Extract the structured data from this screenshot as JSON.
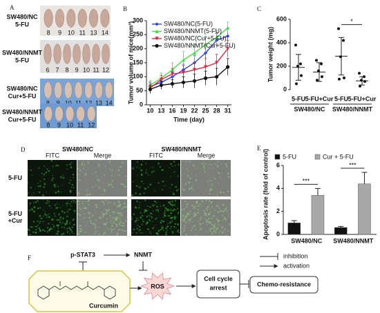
{
  "panel_labels": [
    "A",
    "B",
    "C",
    "D",
    "E",
    "F"
  ],
  "panel_a": {
    "rows": [
      {
        "label": [
          "SW480/NC",
          "5-FU"
        ],
        "numbers": [
          8,
          9,
          10,
          11,
          13,
          14
        ]
      },
      {
        "label": [
          "SW480/NNMT",
          "5-FU"
        ],
        "numbers": [
          6,
          7,
          8,
          9,
          10,
          11,
          12
        ]
      },
      {
        "label": [
          "SW480/NC",
          "Cur+5-FU"
        ],
        "numbers": [
          8,
          9,
          10,
          11,
          12,
          13,
          14
        ]
      },
      {
        "label": [
          "SW480/NNMT",
          "Cur+5-FU"
        ],
        "numbers": [
          8,
          9,
          10,
          11,
          12
        ]
      }
    ]
  },
  "chart_data": [
    {
      "type": "line",
      "ylabel": "Tumor volume of mice(mm³)",
      "xlabel": "Time (day)",
      "x": [
        10,
        13,
        16,
        19,
        22,
        25,
        28,
        31
      ],
      "xlim": [
        9,
        32
      ],
      "xticks": [
        10,
        13,
        16,
        19,
        22,
        25,
        28,
        31
      ],
      "ylim": [
        0,
        300
      ],
      "yticks": [
        0,
        50,
        100,
        150,
        200,
        250,
        300
      ],
      "series": [
        {
          "name": "SW480/NC(5-FU)",
          "color": "#2b3fe0",
          "marker": "diamond",
          "values": [
            65,
            80,
            100,
            125,
            150,
            185,
            230,
            245
          ],
          "errors": [
            15,
            15,
            18,
            20,
            25,
            25,
            25,
            25
          ]
        },
        {
          "name": "SW480/NNMT(5-FU)",
          "color": "#3ce63c",
          "marker": "triangle",
          "values": [
            70,
            95,
            125,
            160,
            185,
            215,
            240,
            275
          ],
          "errors": [
            15,
            18,
            25,
            30,
            30,
            30,
            25,
            20
          ]
        },
        {
          "name": "SW480/NC(Cur+5-FU)",
          "color": "#e8223a",
          "marker": "triangle-down",
          "values": [
            60,
            90,
            110,
            115,
            125,
            135,
            150,
            200
          ],
          "errors": [
            15,
            15,
            20,
            25,
            25,
            30,
            30,
            30
          ]
        },
        {
          "name": "SW480/NNMT(Cur+5-FU)",
          "color": "#111111",
          "marker": "circle",
          "values": [
            55,
            70,
            75,
            80,
            85,
            95,
            100,
            135
          ],
          "errors": [
            15,
            15,
            15,
            20,
            25,
            25,
            30,
            30
          ]
        }
      ]
    },
    {
      "type": "dot",
      "ylabel": "Tumor weight (mg)",
      "categories": [
        "5-FU",
        "5-FU+Cur",
        "5-FU",
        "5-FU+Cur"
      ],
      "groups": [
        "SW480/NC",
        "SW480/NNMT"
      ],
      "ylim": [
        0,
        600
      ],
      "yticks": [
        0,
        200,
        400,
        600
      ],
      "points": [
        [
          380,
          220,
          200,
          120,
          50
        ],
        [
          250,
          220,
          160,
          110,
          80
        ],
        [
          520,
          420,
          280,
          100,
          90
        ],
        [
          140,
          110,
          80,
          70,
          30
        ]
      ],
      "means": [
        190,
        150,
        285,
        75
      ],
      "sd": [
        110,
        80,
        160,
        35
      ],
      "annotation": "*"
    },
    {
      "type": "bar",
      "ylabel": "Apoptosis rate (fold of control)",
      "categories": [
        "SW480/NC",
        "SW480/NNMT"
      ],
      "ylim": [
        0,
        6
      ],
      "yticks": [
        0,
        2,
        4,
        6
      ],
      "series": [
        {
          "name": "5-FU",
          "color": "#111111",
          "values": [
            1.0,
            0.6
          ],
          "errors": [
            0.2,
            0.1
          ]
        },
        {
          "name": "Cur + 5-FU",
          "color": "#a8a8a8",
          "values": [
            3.4,
            4.4
          ],
          "errors": [
            0.6,
            1.0
          ]
        }
      ],
      "annotations": [
        "***",
        "***"
      ]
    }
  ],
  "panel_d": {
    "columns": [
      "SW480/NC",
      "SW480/NNMT"
    ],
    "subcolumns": [
      "FITC",
      "Merge"
    ],
    "rows": [
      [
        "5-FU"
      ],
      [
        "5-FU",
        "+Cur"
      ]
    ]
  },
  "panel_f": {
    "nodes": {
      "stat3": "p-STAT3",
      "nnmt": "NNMT",
      "ros": "ROS",
      "curcumin": "Curcumin",
      "arrest": [
        "Cell cycle",
        "arrest"
      ],
      "chemo": "Chemo-resistance"
    },
    "legend": [
      "inhibition",
      "activation"
    ]
  }
}
